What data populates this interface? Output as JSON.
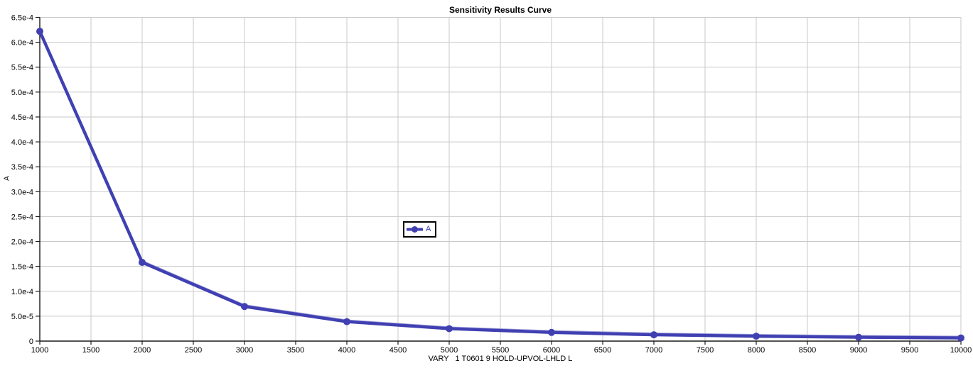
{
  "chart_data": {
    "type": "line",
    "title": "Sensitivity Results Curve",
    "xlabel": "VARY   1 T0601 9 HOLD-UPVOL-LHLD L",
    "ylabel": "A",
    "xlim": [
      1000,
      10000
    ],
    "ylim": [
      0,
      0.00065
    ],
    "grid": true,
    "legend": {
      "position": "center",
      "entries": [
        "A"
      ]
    },
    "x_ticks": {
      "values": [
        1000,
        1500,
        2000,
        2500,
        3000,
        3500,
        4000,
        4500,
        5000,
        5500,
        6000,
        6500,
        7000,
        7500,
        8000,
        8500,
        9000,
        9500,
        10000
      ],
      "labels": [
        "1000",
        "1500",
        "2000",
        "2500",
        "3000",
        "3500",
        "4000",
        "4500",
        "5000",
        "5500",
        "6000",
        "6500",
        "7000",
        "7500",
        "8000",
        "8500",
        "9000",
        "9500",
        "10000"
      ]
    },
    "y_ticks": {
      "values": [
        0,
        5e-05,
        0.0001,
        0.00015,
        0.0002,
        0.00025,
        0.0003,
        0.00035,
        0.0004,
        0.00045,
        0.0005,
        0.00055,
        0.0006,
        0.00065
      ],
      "labels": [
        "0",
        "5.0e-5",
        "1.0e-4",
        "1.5e-4",
        "2.0e-4",
        "2.5e-4",
        "3.0e-4",
        "3.5e-4",
        "4.0e-4",
        "4.5e-4",
        "5.0e-4",
        "5.5e-4",
        "6.0e-4",
        "6.5e-4"
      ]
    },
    "series": [
      {
        "name": "A",
        "marker": "circle",
        "x": [
          1000,
          2000,
          3000,
          4000,
          5000,
          6000,
          7000,
          8000,
          9000,
          10000
        ],
        "y": [
          0.000622,
          0.000158,
          6.95e-05,
          3.9e-05,
          2.5e-05,
          1.74e-05,
          1.27e-05,
          9.8e-06,
          7.7e-06,
          6.3e-06
        ]
      }
    ],
    "colors": {
      "series": "#4040b2",
      "series_highlight": "#9d9dd9",
      "grid": "#c9c9c9",
      "axis": "#1a1a1a",
      "text": "#000000",
      "background": "#ffffff"
    }
  }
}
